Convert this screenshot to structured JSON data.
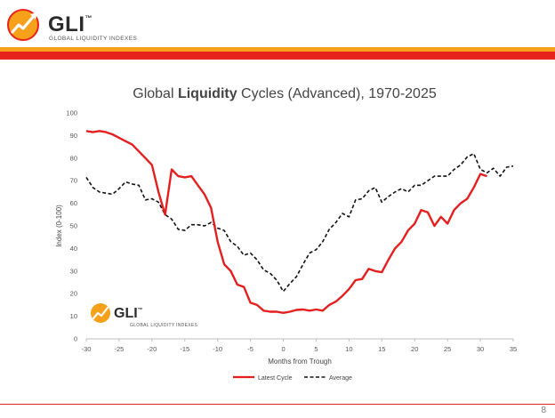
{
  "brand": {
    "name": "GLI",
    "trademark": "™",
    "subtitle": "GLOBAL LIQUIDITY INDEXES",
    "colors": {
      "orange": "#f7a11a",
      "red": "#e8231c",
      "dark": "#2b2b2b"
    }
  },
  "page_number": "8",
  "chart_data": {
    "type": "line",
    "title_parts": {
      "pre": "Global ",
      "bold": "Liquidity",
      "post": " Cycles (Advanced), 1970-2025"
    },
    "xlabel": "Months from Trough",
    "ylabel": "Index (0-100)",
    "xlim": [
      -30,
      35
    ],
    "ylim": [
      0,
      100
    ],
    "x_ticks": [
      -30,
      -25,
      -20,
      -15,
      -10,
      -5,
      0,
      5,
      10,
      15,
      20,
      25,
      30,
      35
    ],
    "y_ticks": [
      0,
      10,
      20,
      30,
      40,
      50,
      60,
      70,
      80,
      90,
      100
    ],
    "grid": false,
    "legend_position": "bottom",
    "watermark": {
      "name": "GLI",
      "trademark": "™",
      "subtitle": "GLOBAL LIQUIDITY INDEXES"
    },
    "series": [
      {
        "name": "Latest Cycle",
        "color": "#e41f1f",
        "style": "solid",
        "points": [
          [
            -30,
            92
          ],
          [
            -29,
            91.5
          ],
          [
            -28,
            92
          ],
          [
            -27,
            91.5
          ],
          [
            -26,
            90.5
          ],
          [
            -25,
            89
          ],
          [
            -24,
            87.5
          ],
          [
            -23,
            86
          ],
          [
            -22,
            83
          ],
          [
            -21,
            80
          ],
          [
            -20,
            77
          ],
          [
            -19,
            65
          ],
          [
            -18,
            55
          ],
          [
            -17,
            75
          ],
          [
            -16,
            72
          ],
          [
            -15,
            71.5
          ],
          [
            -14,
            72
          ],
          [
            -13,
            68
          ],
          [
            -12,
            64
          ],
          [
            -11,
            58
          ],
          [
            -10,
            43
          ],
          [
            -9,
            33
          ],
          [
            -8,
            30
          ],
          [
            -7,
            24
          ],
          [
            -6,
            23
          ],
          [
            -5,
            16
          ],
          [
            -4,
            15
          ],
          [
            -3,
            12.5
          ],
          [
            -2,
            12
          ],
          [
            -1,
            12
          ],
          [
            0,
            11.5
          ],
          [
            1,
            12
          ],
          [
            2,
            12.8
          ],
          [
            3,
            13
          ],
          [
            4,
            12.5
          ],
          [
            5,
            13
          ],
          [
            6,
            12.5
          ],
          [
            7,
            15
          ],
          [
            8,
            16.5
          ],
          [
            9,
            19
          ],
          [
            10,
            22
          ],
          [
            11,
            26
          ],
          [
            12,
            26.5
          ],
          [
            13,
            31
          ],
          [
            14,
            30
          ],
          [
            15,
            29.5
          ],
          [
            16,
            35
          ],
          [
            17,
            40
          ],
          [
            18,
            43
          ],
          [
            19,
            48
          ],
          [
            20,
            51
          ],
          [
            21,
            57
          ],
          [
            22,
            56
          ],
          [
            23,
            50
          ],
          [
            24,
            54
          ],
          [
            25,
            51
          ],
          [
            26,
            57
          ],
          [
            27,
            60
          ],
          [
            28,
            62
          ],
          [
            29,
            67
          ],
          [
            30,
            73
          ],
          [
            31,
            72
          ]
        ]
      },
      {
        "name": "Average",
        "color": "#111111",
        "style": "dashed",
        "points": [
          [
            -30,
            71.5
          ],
          [
            -29,
            67
          ],
          [
            -28,
            65
          ],
          [
            -27,
            64.5
          ],
          [
            -26,
            64
          ],
          [
            -25,
            66.5
          ],
          [
            -24,
            69.5
          ],
          [
            -23,
            68.5
          ],
          [
            -22,
            68
          ],
          [
            -21,
            61.5
          ],
          [
            -20,
            62
          ],
          [
            -19,
            60.5
          ],
          [
            -18,
            55
          ],
          [
            -17,
            53
          ],
          [
            -16,
            48.5
          ],
          [
            -15,
            48
          ],
          [
            -14,
            50.5
          ],
          [
            -13,
            50.5
          ],
          [
            -12,
            50
          ],
          [
            -11,
            51.5
          ],
          [
            -10,
            49
          ],
          [
            -9,
            48
          ],
          [
            -8,
            43
          ],
          [
            -7,
            41
          ],
          [
            -6,
            37
          ],
          [
            -5,
            38
          ],
          [
            -4,
            35
          ],
          [
            -3,
            30.5
          ],
          [
            -2,
            29
          ],
          [
            -1,
            26
          ],
          [
            0,
            21
          ],
          [
            1,
            24.5
          ],
          [
            2,
            27.5
          ],
          [
            3,
            33
          ],
          [
            4,
            38
          ],
          [
            5,
            39.5
          ],
          [
            6,
            43
          ],
          [
            7,
            48.5
          ],
          [
            8,
            51.5
          ],
          [
            9,
            55.5
          ],
          [
            10,
            54
          ],
          [
            11,
            61.5
          ],
          [
            12,
            62
          ],
          [
            13,
            65.5
          ],
          [
            14,
            67
          ],
          [
            15,
            60.5
          ],
          [
            16,
            63
          ],
          [
            17,
            65
          ],
          [
            18,
            66.5
          ],
          [
            19,
            65
          ],
          [
            20,
            68
          ],
          [
            21,
            68
          ],
          [
            22,
            70
          ],
          [
            23,
            72
          ],
          [
            24,
            72
          ],
          [
            25,
            72
          ],
          [
            26,
            75
          ],
          [
            27,
            77
          ],
          [
            28,
            80.5
          ],
          [
            29,
            82
          ],
          [
            30,
            75
          ],
          [
            31,
            73.5
          ],
          [
            32,
            75.5
          ],
          [
            33,
            72
          ],
          [
            34,
            76
          ],
          [
            35,
            76.5
          ]
        ]
      }
    ]
  }
}
